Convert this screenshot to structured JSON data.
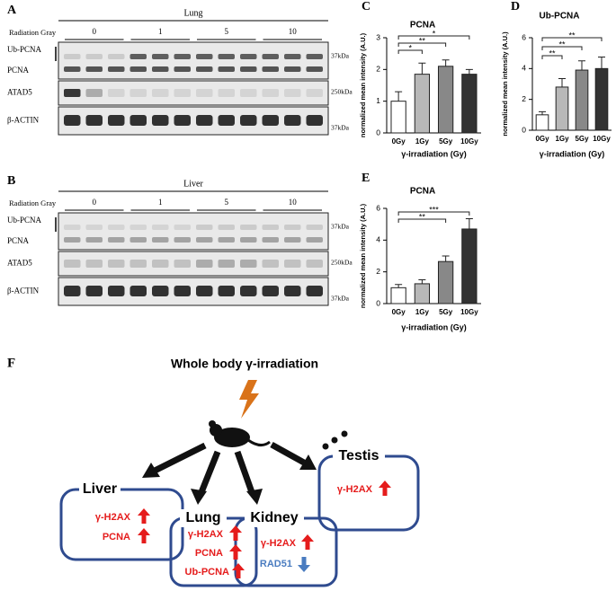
{
  "blots": [
    {
      "panel": "A",
      "tissue": "Lung",
      "radiation_label": "Radiation Gray",
      "doses": [
        "0",
        "1",
        "5",
        "10"
      ],
      "rows": [
        "Ub-PCNA",
        "PCNA",
        "ATAD5",
        "β-ACTIN"
      ],
      "markers": [
        "37kDa",
        "250kDa",
        "37kDa"
      ]
    },
    {
      "panel": "B",
      "tissue": "Liver",
      "radiation_label": "Radiation Gray",
      "doses": [
        "0",
        "1",
        "5",
        "10"
      ],
      "rows": [
        "Ub-PCNA",
        "PCNA",
        "ATAD5",
        "β-ACTIN"
      ],
      "markers": [
        "37kDa",
        "250kDa",
        "37kDa"
      ]
    }
  ],
  "chart_data": [
    {
      "type": "bar",
      "panel": "C",
      "title": "PCNA",
      "categories": [
        "0Gy",
        "1Gy",
        "5Gy",
        "10Gy"
      ],
      "values": [
        1.0,
        1.85,
        2.1,
        1.85
      ],
      "errors": [
        0.3,
        0.35,
        0.2,
        0.15
      ],
      "colors": [
        "#ffffff",
        "#b8b8b8",
        "#888888",
        "#333333"
      ],
      "ylim": [
        0,
        3
      ],
      "yticks": [
        0,
        1,
        2,
        3
      ],
      "ylabel": "normalized mean intensity (A.U.)",
      "xlabel": "γ-irradiation (Gy)",
      "significance": [
        "*",
        "**",
        "*"
      ]
    },
    {
      "type": "bar",
      "panel": "D",
      "title": "Ub-PCNA",
      "categories": [
        "0Gy",
        "1Gy",
        "5Gy",
        "10Gy"
      ],
      "values": [
        1.0,
        2.8,
        3.9,
        4.0
      ],
      "errors": [
        0.2,
        0.55,
        0.6,
        0.75
      ],
      "colors": [
        "#ffffff",
        "#b8b8b8",
        "#888888",
        "#333333"
      ],
      "ylim": [
        0,
        6
      ],
      "yticks": [
        0,
        2,
        4,
        6
      ],
      "ylabel": "normalized mean intensity (A.U.)",
      "xlabel": "γ-irradiation (Gy)",
      "significance": [
        "**",
        "**",
        "**"
      ]
    },
    {
      "type": "bar",
      "panel": "E",
      "title": "PCNA",
      "categories": [
        "0Gy",
        "1Gy",
        "5Gy",
        "10Gy"
      ],
      "values": [
        1.0,
        1.25,
        2.65,
        4.7
      ],
      "errors": [
        0.2,
        0.25,
        0.35,
        0.65
      ],
      "colors": [
        "#ffffff",
        "#b8b8b8",
        "#888888",
        "#333333"
      ],
      "ylim": [
        0,
        6
      ],
      "yticks": [
        0,
        2,
        4,
        6
      ],
      "ylabel": "normalized mean intensity (A.U.)",
      "xlabel": "γ-irradiation (Gy)",
      "significance": [
        "**",
        "***"
      ]
    }
  ],
  "diagram": {
    "panel": "F",
    "title": "Whole body γ-irradiation",
    "organs": [
      {
        "name": "Liver",
        "markers": [
          "γ-H2AX",
          "PCNA"
        ]
      },
      {
        "name": "Lung",
        "markers": [
          "γ-H2AX",
          "PCNA",
          "Ub-PCNA"
        ]
      },
      {
        "name": "Kidney",
        "markers": [
          "γ-H2AX",
          "RAD51"
        ]
      },
      {
        "name": "Testis",
        "markers": [
          "γ-H2AX"
        ]
      }
    ]
  }
}
